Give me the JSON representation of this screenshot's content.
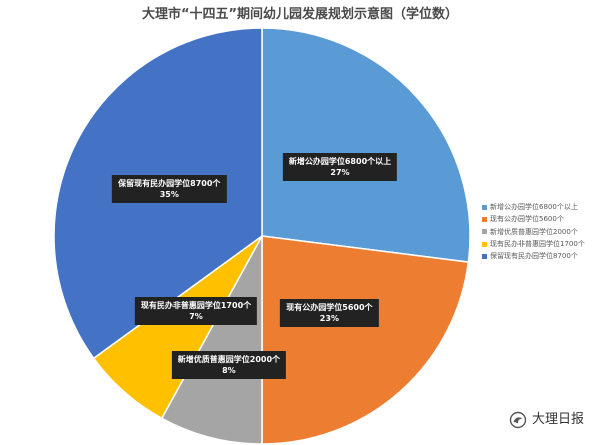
{
  "chart_data": {
    "type": "pie",
    "title": "大理市“十四五”期间幼儿园发展规划示意图（学位数）",
    "categories": [
      "新增公办园学位6800个以上",
      "现有公办园学位5600个",
      "新增优质普惠园学位2000个",
      "现有民办非普惠园学位1700个",
      "保留现有民办园学位8700个"
    ],
    "values": [
      27,
      23,
      8,
      7,
      35
    ],
    "value_labels": [
      "27%",
      "23%",
      "8%",
      "7%",
      "35%"
    ],
    "colors": [
      "#5B9BD5",
      "#ED7D31",
      "#A5A5A5",
      "#FFC000",
      "#4472C4"
    ],
    "legend_position": "right"
  },
  "watermark": {
    "text": "大理日报",
    "icon": "logo-icon"
  }
}
